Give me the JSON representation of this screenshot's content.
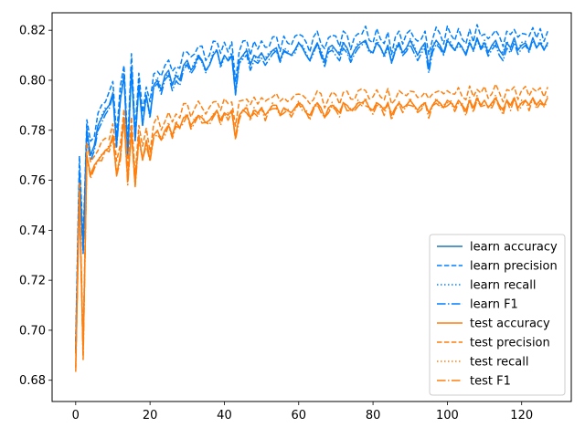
{
  "chart_data": {
    "type": "line",
    "xlim": [
      -6.35,
      133.35
    ],
    "ylim": [
      0.6715,
      0.827
    ],
    "xticks": [
      0,
      20,
      40,
      60,
      80,
      100,
      120
    ],
    "yticks": [
      0.68,
      0.7,
      0.72,
      0.74,
      0.76,
      0.78,
      0.8,
      0.82
    ],
    "grid": false,
    "legend_position": "lower-right",
    "series": [
      {
        "name": "learn accuracy",
        "color": "#1f77b4",
        "blend": "#007fff",
        "dash": "solid",
        "group": "learn",
        "variant": 0
      },
      {
        "name": "learn precision",
        "color": "#007fff",
        "dash": "dashed",
        "group": "learn",
        "variant": 1
      },
      {
        "name": "learn recall",
        "color": "#007fff",
        "dash": "dotted",
        "group": "learn",
        "variant": 2
      },
      {
        "name": "learn F1",
        "color": "#007fff",
        "dash": "dashdot",
        "group": "learn",
        "variant": 3
      },
      {
        "name": "test accuracy",
        "color": "#ff7f0e",
        "dash": "solid",
        "group": "test",
        "variant": 0
      },
      {
        "name": "test precision",
        "color": "#ff7f0e",
        "dash": "dashed",
        "group": "test",
        "variant": 1
      },
      {
        "name": "test recall",
        "color": "#ff7f0e",
        "dash": "dotted",
        "group": "test",
        "variant": 2
      },
      {
        "name": "test F1",
        "color": "#ff7f0e",
        "dash": "dashdot",
        "group": "test",
        "variant": 3
      }
    ],
    "x": [
      0,
      1,
      2,
      3,
      4,
      5,
      6,
      7,
      8,
      9,
      10,
      11,
      12,
      13,
      14,
      15,
      16,
      17,
      18,
      19,
      20,
      21,
      22,
      23,
      24,
      25,
      26,
      27,
      28,
      29,
      30,
      31,
      32,
      33,
      34,
      35,
      36,
      37,
      38,
      39,
      40,
      41,
      42,
      43,
      44,
      45,
      46,
      47,
      48,
      49,
      50,
      51,
      52,
      53,
      54,
      55,
      56,
      57,
      58,
      59,
      60,
      61,
      62,
      63,
      64,
      65,
      66,
      67,
      68,
      69,
      70,
      71,
      72,
      73,
      74,
      75,
      76,
      77,
      78,
      79,
      80,
      81,
      82,
      83,
      84,
      85,
      86,
      87,
      88,
      89,
      90,
      91,
      92,
      93,
      94,
      95,
      96,
      97,
      98,
      99,
      100,
      101,
      102,
      103,
      104,
      105,
      106,
      107,
      108,
      109,
      110,
      111,
      112,
      113,
      114,
      115,
      116,
      117,
      118,
      119,
      120,
      121,
      122,
      123,
      124,
      125,
      126,
      127
    ],
    "values": {
      "learn accuracy": [
        0.692,
        0.764,
        0.732,
        0.78,
        0.77,
        0.774,
        0.782,
        0.785,
        0.788,
        0.79,
        0.795,
        0.774,
        0.792,
        0.802,
        0.77,
        0.805,
        0.776,
        0.798,
        0.782,
        0.794,
        0.786,
        0.798,
        0.8,
        0.796,
        0.802,
        0.804,
        0.798,
        0.802,
        0.8,
        0.806,
        0.808,
        0.804,
        0.806,
        0.81,
        0.808,
        0.804,
        0.806,
        0.81,
        0.812,
        0.806,
        0.81,
        0.808,
        0.81,
        0.795,
        0.808,
        0.81,
        0.812,
        0.806,
        0.81,
        0.809,
        0.811,
        0.808,
        0.81,
        0.812,
        0.813,
        0.808,
        0.812,
        0.811,
        0.81,
        0.812,
        0.815,
        0.813,
        0.81,
        0.808,
        0.812,
        0.815,
        0.811,
        0.807,
        0.813,
        0.814,
        0.812,
        0.81,
        0.815,
        0.813,
        0.809,
        0.812,
        0.814,
        0.815,
        0.816,
        0.812,
        0.811,
        0.815,
        0.813,
        0.81,
        0.814,
        0.807,
        0.812,
        0.815,
        0.811,
        0.813,
        0.816,
        0.813,
        0.81,
        0.813,
        0.815,
        0.805,
        0.813,
        0.816,
        0.814,
        0.811,
        0.816,
        0.814,
        0.812,
        0.815,
        0.813,
        0.81,
        0.815,
        0.812,
        0.817,
        0.813,
        0.815,
        0.811,
        0.814,
        0.816,
        0.812,
        0.81,
        0.815,
        0.813,
        0.817,
        0.812,
        0.814,
        0.815,
        0.812,
        0.817,
        0.813,
        0.815,
        0.812,
        0.815
      ],
      "test accuracy": [
        0.685,
        0.755,
        0.69,
        0.77,
        0.762,
        0.766,
        0.768,
        0.77,
        0.772,
        0.773,
        0.778,
        0.762,
        0.77,
        0.785,
        0.76,
        0.78,
        0.758,
        0.778,
        0.768,
        0.776,
        0.768,
        0.778,
        0.78,
        0.776,
        0.78,
        0.782,
        0.778,
        0.783,
        0.781,
        0.785,
        0.786,
        0.782,
        0.784,
        0.786,
        0.785,
        0.783,
        0.784,
        0.786,
        0.788,
        0.784,
        0.787,
        0.786,
        0.788,
        0.777,
        0.786,
        0.788,
        0.789,
        0.785,
        0.788,
        0.787,
        0.789,
        0.786,
        0.788,
        0.79,
        0.79,
        0.786,
        0.789,
        0.788,
        0.787,
        0.789,
        0.791,
        0.79,
        0.787,
        0.786,
        0.789,
        0.791,
        0.789,
        0.785,
        0.789,
        0.79,
        0.789,
        0.787,
        0.791,
        0.79,
        0.788,
        0.789,
        0.791,
        0.791,
        0.792,
        0.789,
        0.788,
        0.791,
        0.79,
        0.788,
        0.791,
        0.786,
        0.789,
        0.791,
        0.789,
        0.79,
        0.792,
        0.79,
        0.788,
        0.79,
        0.791,
        0.787,
        0.79,
        0.792,
        0.791,
        0.789,
        0.792,
        0.791,
        0.789,
        0.792,
        0.79,
        0.788,
        0.792,
        0.789,
        0.793,
        0.79,
        0.792,
        0.789,
        0.791,
        0.793,
        0.79,
        0.788,
        0.792,
        0.79,
        0.793,
        0.789,
        0.791,
        0.792,
        0.79,
        0.793,
        0.79,
        0.792,
        0.79,
        0.793
      ]
    },
    "offsets": {
      "learn": [
        0.0,
        0.0045,
        0.0,
        -0.001
      ],
      "test": [
        0.0,
        0.0045,
        0.0,
        -0.001
      ]
    }
  }
}
